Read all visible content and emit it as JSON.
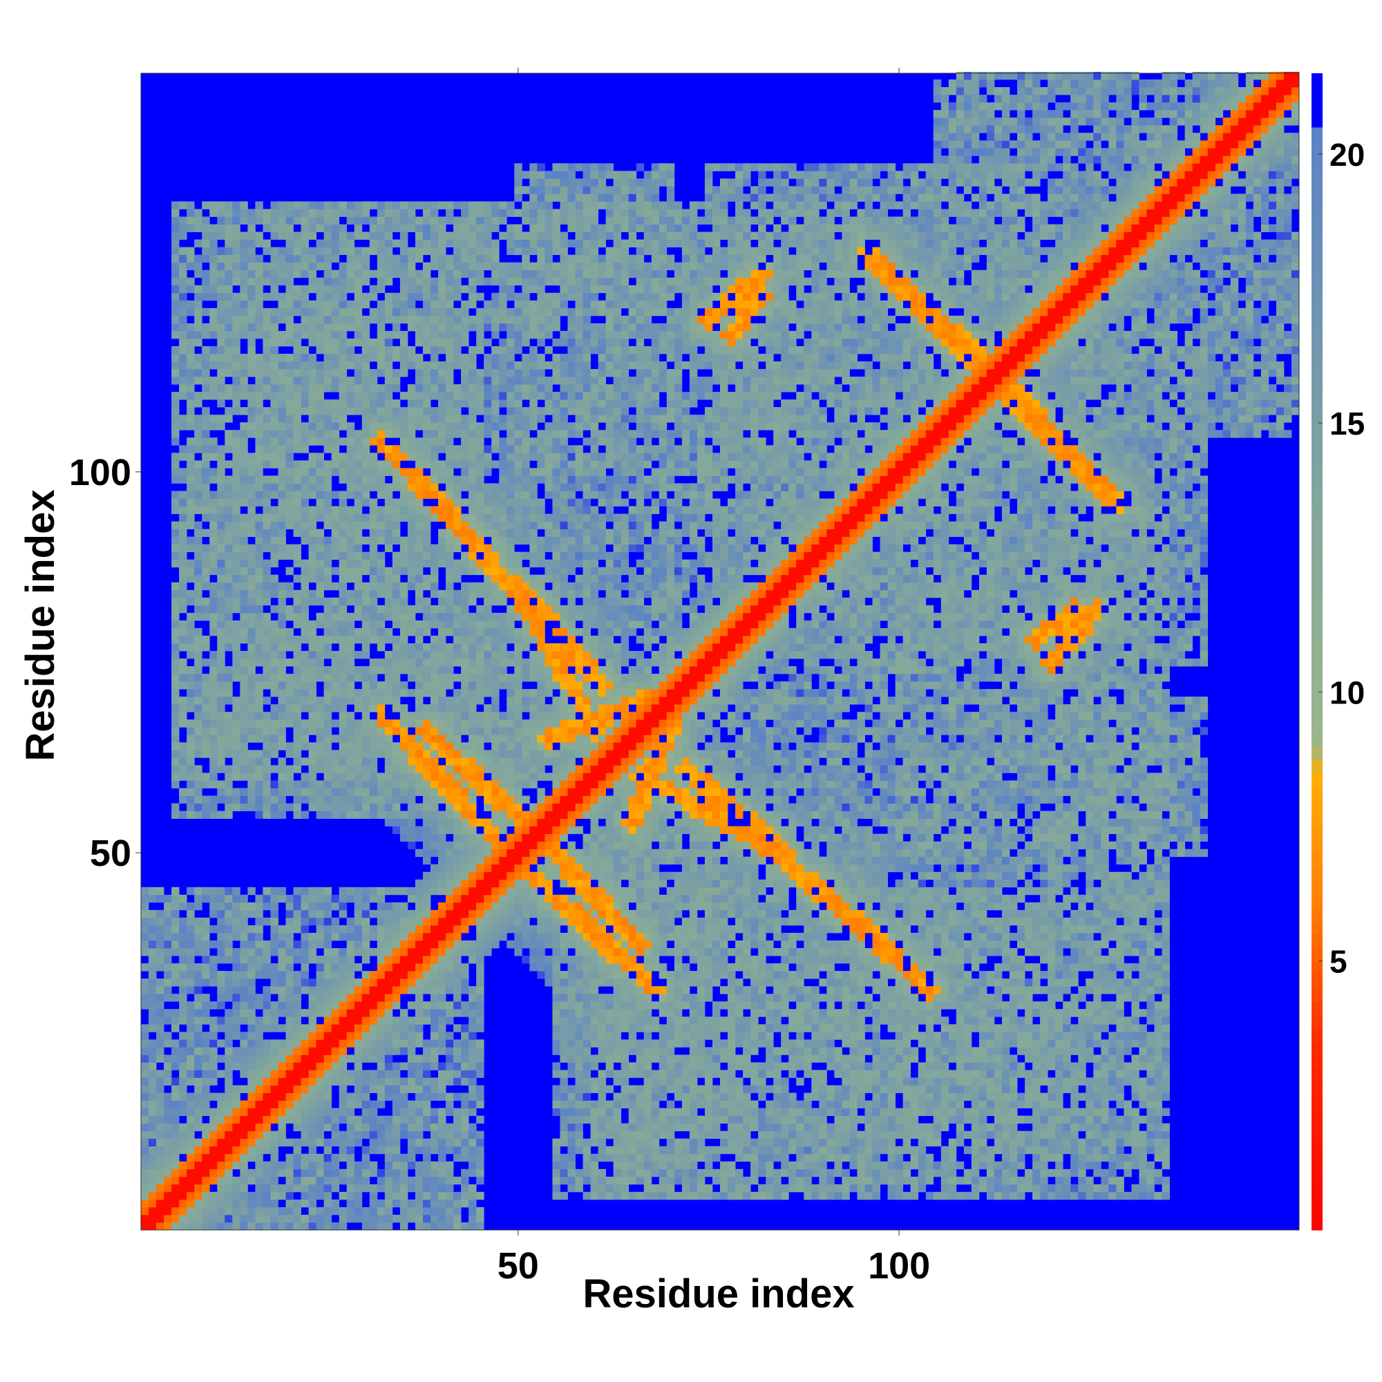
{
  "chart_data": {
    "type": "heatmap",
    "title": "",
    "xlabel": "Residue index",
    "ylabel": "Residue index",
    "n_residues": 152,
    "x_ticks": [
      50,
      100
    ],
    "y_ticks": [
      50,
      100
    ],
    "colorbar": {
      "ticks": [
        5,
        10,
        15,
        20
      ],
      "range": [
        0,
        21.5
      ],
      "stops": [
        {
          "value": 0,
          "color": "#ff0000"
        },
        {
          "value": 3.5,
          "color": "#ff2a00"
        },
        {
          "value": 6,
          "color": "#ff7f00"
        },
        {
          "value": 8.5,
          "color": "#ffae00"
        },
        {
          "value": 9,
          "color": "#9cb58b"
        },
        {
          "value": 13,
          "color": "#86a99a"
        },
        {
          "value": 20.5,
          "color": "#5b82c6"
        },
        {
          "value": 21.5,
          "color": "#0000ff"
        }
      ]
    },
    "colors": {
      "background": "#0000ff",
      "diagonal": "#ff0000",
      "close_contact": "#ff8c00",
      "mid_distance": "#9fb88a",
      "far_distance": "#6a8fbf"
    },
    "contact_ridges": [
      {
        "from": [
          52,
          47
        ],
        "to": [
          68,
          32
        ],
        "description": "anti-diagonal ridge near diagonal at ~50"
      },
      {
        "from": [
          52,
          53
        ],
        "to": [
          66,
          38
        ],
        "description": "lower-right of diagonal crossing"
      },
      {
        "from": [
          54,
          65
        ],
        "to": [
          74,
          73
        ],
        "description": "ridge 54-74"
      },
      {
        "from": [
          66,
          60
        ],
        "to": [
          85,
          50
        ],
        "description": "ridge at 66-85"
      },
      {
        "from": [
          78,
          55
        ],
        "to": [
          100,
          36
        ],
        "description": "ridge 78-100"
      },
      {
        "from": [
          32,
          104
        ],
        "to": [
          46,
          89
        ],
        "description": "ridge upper-left"
      },
      {
        "from": [
          51,
          84
        ],
        "to": [
          61,
          72
        ],
        "description": "ridge mid-left"
      },
      {
        "from": [
          75,
          120
        ],
        "to": [
          82,
          126
        ],
        "description": "upper arc"
      },
      {
        "from": [
          96,
          128
        ],
        "to": [
          112,
          114
        ],
        "description": "ridge near 100-112"
      },
      {
        "from": [
          112,
          112
        ],
        "to": [
          129,
          96
        ],
        "description": "ridge crossing at 112"
      },
      {
        "from": [
          118,
          78
        ],
        "to": [
          123,
          82
        ],
        "description": "small ridge right"
      }
    ]
  }
}
